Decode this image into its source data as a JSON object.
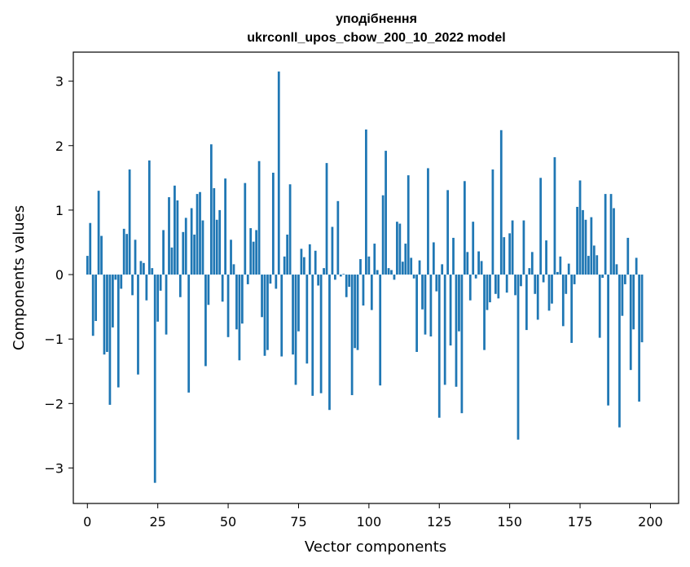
{
  "chart_data": {
    "type": "bar",
    "title_line1": "уподібнення",
    "title_line2": "ukrconll_upos_cbow_200_10_2022 model",
    "xlabel": "Vector components",
    "ylabel": "Components values",
    "xlim": [
      -5,
      210
    ],
    "ylim": [
      -3.55,
      3.45
    ],
    "xticks": [
      0,
      25,
      50,
      75,
      100,
      125,
      150,
      175,
      200
    ],
    "xtick_labels": [
      "0",
      "25",
      "50",
      "75",
      "100",
      "125",
      "150",
      "175",
      "200"
    ],
    "yticks": [
      -3,
      -2,
      -1,
      0,
      1,
      2,
      3
    ],
    "ytick_labels": [
      "−3",
      "−2",
      "−1",
      "0",
      "1",
      "2",
      "3"
    ],
    "bar_color": "#1f77b4",
    "grid": false,
    "values": [
      0.29,
      0.8,
      -0.95,
      -0.72,
      1.3,
      0.6,
      -1.24,
      -1.2,
      -2.02,
      -0.82,
      -0.08,
      -1.75,
      -0.22,
      0.71,
      0.63,
      1.63,
      -0.32,
      0.54,
      -1.55,
      0.21,
      0.18,
      -0.4,
      1.77,
      0.1,
      -3.23,
      -0.73,
      -0.25,
      0.69,
      -0.93,
      1.2,
      0.42,
      1.38,
      1.15,
      -0.35,
      0.66,
      0.88,
      -1.83,
      1.03,
      0.62,
      1.25,
      1.28,
      0.84,
      -1.42,
      -0.47,
      2.02,
      1.34,
      0.85,
      1.0,
      -0.42,
      1.49,
      -0.97,
      0.54,
      0.16,
      -0.85,
      -1.33,
      -0.76,
      1.42,
      -0.15,
      0.72,
      0.51,
      0.69,
      1.76,
      -0.66,
      -1.26,
      -1.17,
      -0.14,
      1.58,
      -0.22,
      3.15,
      -1.27,
      0.28,
      0.62,
      1.4,
      -1.24,
      -1.71,
      -0.88,
      0.4,
      0.27,
      -1.38,
      0.47,
      -1.88,
      0.37,
      -0.17,
      -1.84,
      0.1,
      1.73,
      -2.1,
      0.74,
      -0.08,
      1.14,
      -0.03,
      0.01,
      -0.35,
      -0.19,
      -1.87,
      -1.14,
      -1.17,
      0.24,
      -0.48,
      2.25,
      0.28,
      -0.55,
      0.48,
      0.07,
      -1.72,
      1.23,
      1.92,
      0.1,
      0.07,
      -0.08,
      0.82,
      0.79,
      0.2,
      0.48,
      1.54,
      0.26,
      -0.06,
      -1.2,
      0.22,
      -0.54,
      -0.93,
      1.65,
      -0.96,
      0.5,
      -0.26,
      -2.22,
      0.16,
      -1.71,
      1.31,
      -1.1,
      0.57,
      -1.74,
      -0.88,
      -2.15,
      1.45,
      0.35,
      -0.4,
      0.82,
      -0.06,
      0.36,
      0.21,
      -1.17,
      -0.55,
      -0.43,
      1.63,
      -0.3,
      -0.37,
      2.24,
      0.58,
      -0.28,
      0.64,
      0.84,
      -0.32,
      -2.56,
      -0.18,
      0.84,
      -0.86,
      0.1,
      0.35,
      -0.3,
      -0.7,
      1.5,
      -0.12,
      0.53,
      -0.56,
      -0.45,
      1.82,
      0.04,
      0.28,
      -0.8,
      -0.3,
      0.17,
      -1.06,
      -0.15,
      1.05,
      1.46,
      1.0,
      0.85,
      0.29,
      0.89,
      0.45,
      0.3,
      -0.98,
      -0.05,
      1.25,
      -2.03,
      1.25,
      1.03,
      0.16,
      -2.37,
      -0.64,
      -0.15,
      0.57,
      -1.48,
      -0.85,
      0.26,
      -1.97,
      -1.05
    ]
  }
}
